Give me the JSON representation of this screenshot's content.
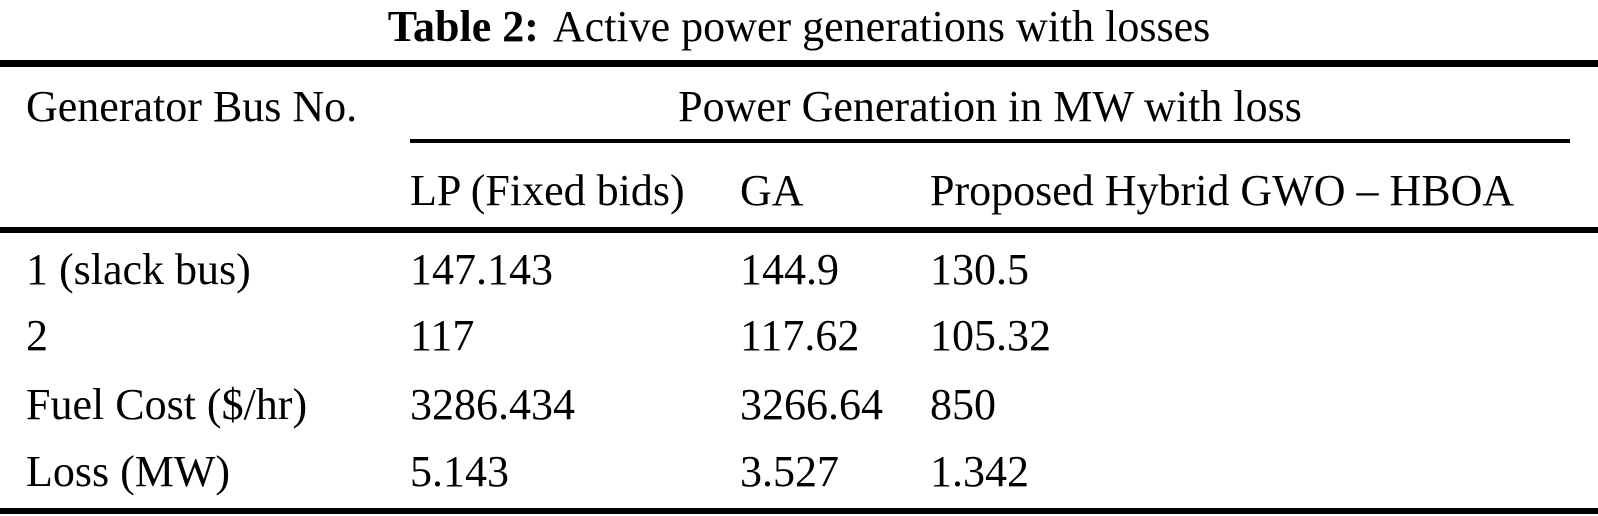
{
  "caption": {
    "label": "Table 2:",
    "text": "Active power generations with losses"
  },
  "table": {
    "col1_header": "Generator Bus No.",
    "group_header": "Power Generation in MW with loss",
    "sub_headers": [
      "LP (Fixed bids)",
      "GA",
      "Proposed Hybrid GWO – HBOA"
    ],
    "rows": [
      {
        "label": "1 (slack bus)",
        "values": [
          "147.143",
          "144.9",
          "130.5"
        ]
      },
      {
        "label": "2",
        "values": [
          "117",
          "117.62",
          "105.32"
        ]
      },
      {
        "label": "Fuel Cost ($/hr)",
        "values": [
          "3286.434",
          "3266.64",
          "850"
        ]
      },
      {
        "label": "Loss (MW)",
        "values": [
          "5.143",
          "3.527",
          "1.342"
        ]
      }
    ]
  },
  "colors": {
    "background": "#ffffff",
    "text": "#000000",
    "rule": "#000000"
  }
}
